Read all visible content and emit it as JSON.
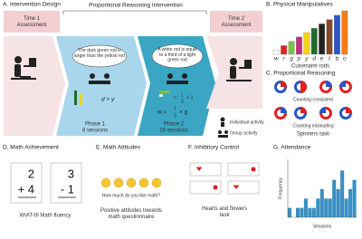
{
  "panels": {
    "a": {
      "title": "A. Intervention Design",
      "time1": "Time 1\nAssessment",
      "intervention": "Proportional Reasoning Intervention",
      "time2": "Time 2\nAssessment",
      "bubble1": "The dark green rod is larger than the yellow rod",
      "bubble2": "A white rod is equal to a third of a light green rod",
      "eq1": "d > y",
      "eq2_lhs": "=",
      "eq2_num": "1",
      "eq2_den": "3",
      "eq2_rhs": "× 3",
      "eq3_lhs": "w =",
      "eq3_num": "1",
      "eq3_den": "3",
      "eq3_rhs": "× g",
      "phase1": "Phase 1",
      "sessions1": "8 sessions",
      "phase2": "Phase 2",
      "sessions2": "16 sessions",
      "individual": "Individual activity",
      "group": "Group activity"
    },
    "b": {
      "title": "B. Physical Manipulatives",
      "caption": "Cuisenaire rods",
      "rods": [
        {
          "letter": "w",
          "color": "#ffffff",
          "length": 1
        },
        {
          "letter": "r",
          "color": "#e02020",
          "length": 2
        },
        {
          "letter": "g",
          "color": "#7cc242",
          "length": 3
        },
        {
          "letter": "p",
          "color": "#c0307a",
          "length": 4
        },
        {
          "letter": "y",
          "color": "#f2d21b",
          "length": 5
        },
        {
          "letter": "d",
          "color": "#1f6b2a",
          "length": 6
        },
        {
          "letter": "e",
          "color": "#222222",
          "length": 7
        },
        {
          "letter": "t",
          "color": "#8a4b24",
          "length": 8
        },
        {
          "letter": "b",
          "color": "#2a56c6",
          "length": 9
        },
        {
          "letter": "o",
          "color": "#f07d1a",
          "length": 10
        }
      ]
    },
    "c": {
      "title": "C. Proportional Reasoning",
      "row1": "Counting consistent",
      "row2": "Counting misleading",
      "caption": "Spinners task"
    },
    "d": {
      "title": "D. Math Achievement",
      "card1_top": "2",
      "card1_bottom": "+ 4",
      "card2_top": "3",
      "card2_bottom": "- 1",
      "caption": "WIAT-III Math fluency"
    },
    "e": {
      "title": "E. Math Attitudes",
      "question": "How much do you like math?",
      "caption": "Positive attitudes towards\nmath questionnaire"
    },
    "f": {
      "title": "F. Inhibitory Control",
      "caption": "Hearts and flowers\ntask"
    },
    "g": {
      "title": "G. Attendance",
      "ylabel": "Frequency",
      "xlabel": "Sessions",
      "color": "#3a8fc1",
      "ylim": [
        0,
        6
      ],
      "values": [
        1,
        0,
        1,
        1,
        2,
        1,
        1,
        2,
        3,
        2,
        2,
        4,
        3,
        5,
        2,
        3,
        4
      ]
    }
  }
}
